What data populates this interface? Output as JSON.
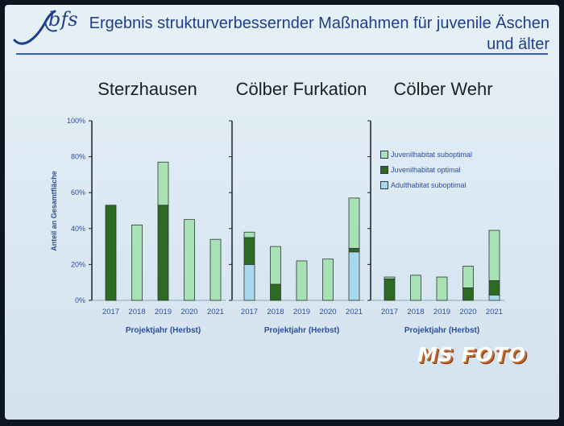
{
  "header": {
    "logo_text": "bfs",
    "title_line1": "Ergebnis strukturverbessernder Maßnahmen für juvenile Äschen",
    "title_line2": "und älter"
  },
  "watermark": "MS FOTO",
  "colors": {
    "juvenil_suboptimal": "#a8e2b4",
    "juvenil_optimal": "#2f6a22",
    "adult_suboptimal": "#a8d8ec",
    "axis_text": "#2b4fa0",
    "title_text": "#1a1f2c"
  },
  "legend": [
    {
      "label": "Juvenilhabitat suboptimal",
      "color": "#a8e2b4"
    },
    {
      "label": "Juvenilhabitat optimal",
      "color": "#2f6a22"
    },
    {
      "label": "Adulthabitat suboptimal",
      "color": "#a8d8ec"
    }
  ],
  "chart_data": [
    {
      "type": "bar",
      "stacked": true,
      "title": "Sterzhausen",
      "categories": [
        "2017",
        "2018",
        "2019",
        "2020",
        "2021"
      ],
      "series": [
        {
          "name": "Adulthabitat suboptimal",
          "values": [
            0,
            0,
            0,
            0,
            0
          ]
        },
        {
          "name": "Juvenilhabitat optimal",
          "values": [
            53,
            0,
            53,
            0,
            0
          ]
        },
        {
          "name": "Juvenilhabitat suboptimal",
          "values": [
            0,
            42,
            24,
            45,
            34
          ]
        }
      ],
      "xlabel": "Projektjahr (Herbst)",
      "ylabel": "Anteil an Gesamtfläche",
      "yticks": [
        "0%",
        "20%",
        "40%",
        "60%",
        "80%",
        "100%"
      ],
      "ylim": [
        0,
        100
      ]
    },
    {
      "type": "bar",
      "stacked": true,
      "title": "Cölber Furkation",
      "categories": [
        "2017",
        "2018",
        "2019",
        "2020",
        "2021"
      ],
      "series": [
        {
          "name": "Adulthabitat suboptimal",
          "values": [
            20,
            0,
            0,
            0,
            27
          ]
        },
        {
          "name": "Juvenilhabitat optimal",
          "values": [
            15,
            9,
            0,
            0,
            2
          ]
        },
        {
          "name": "Juvenilhabitat suboptimal",
          "values": [
            3,
            21,
            22,
            23,
            28
          ]
        }
      ],
      "xlabel": "Projektjahr (Herbst)",
      "ylim": [
        0,
        100
      ]
    },
    {
      "type": "bar",
      "stacked": true,
      "title": "Cölber Wehr",
      "categories": [
        "2017",
        "2018",
        "2019",
        "2020",
        "2021"
      ],
      "series": [
        {
          "name": "Adulthabitat suboptimal",
          "values": [
            0,
            0,
            0,
            0,
            3
          ]
        },
        {
          "name": "Juvenilhabitat optimal",
          "values": [
            12,
            0,
            0,
            7,
            8
          ]
        },
        {
          "name": "Juvenilhabitat suboptimal",
          "values": [
            1,
            14,
            13,
            12,
            28
          ]
        }
      ],
      "xlabel": "Projektjahr (Herbst)",
      "ylim": [
        0,
        100
      ],
      "legend_position": "top-right"
    }
  ]
}
